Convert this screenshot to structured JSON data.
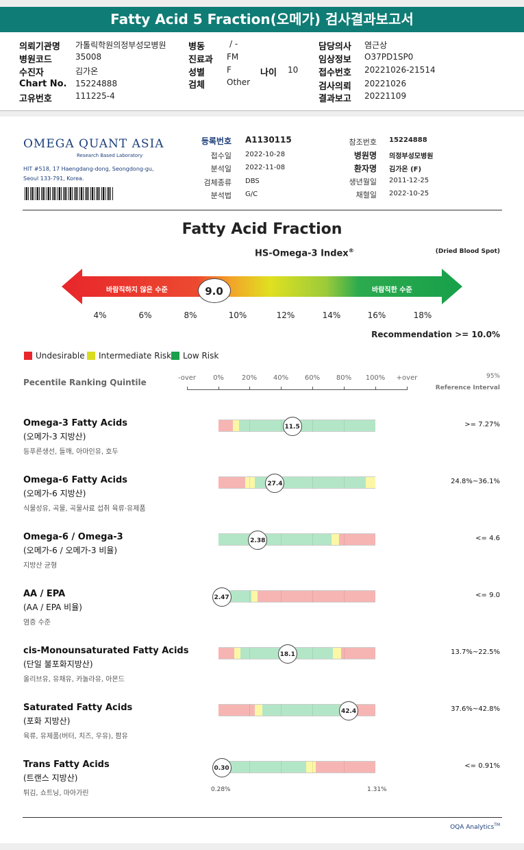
{
  "header": {
    "title": "Fatty Acid 5 Fraction(오메가) 검사결과보고서"
  },
  "info": {
    "inst_label": "의뢰기관명",
    "inst_value": "가톨릭학원의정부성모병원",
    "ward_label": "병동",
    "ward_value": "/ -",
    "doctor_label": "담당의사",
    "doctor_value": "염근상",
    "code_label": "병원코드",
    "code_value": "35008",
    "dept_label": "진료과",
    "dept_value": "FM",
    "clinical_label": "임상정보",
    "clinical_value": "O37PD1SP0",
    "recv_label": "수진자",
    "recv_value": "김가온",
    "sex_label": "성별",
    "sex_value": "F",
    "age_label": "나이",
    "age_value": "10",
    "receipt_label": "접수번호",
    "receipt_value": "20221026-21514",
    "chart_label": "Chart No.",
    "chart_value": "15224888",
    "specimen_label": "검체",
    "specimen_value": "Other",
    "request_label": "검사의뢰",
    "request_value": "20221026",
    "uid_label": "고유번호",
    "uid_value": "111225-4",
    "result_label": "결과보고",
    "result_value": "20221109"
  },
  "lab": {
    "logo": "OMEGA QUANT ASIA",
    "tagline": "Research Based Laboratory",
    "address1": "HIT #518, 17 Haengdang-dong, Seongdong-gu,",
    "address2": "Seoul 133-791, Korea.",
    "reg_label": "등록번호",
    "reg_value": "A1130115",
    "rdate_label": "접수일",
    "rdate_value": "2022-10-28",
    "adate_label": "분석일",
    "adate_value": "2022-11-08",
    "stype_label": "검체종류",
    "stype_value": "DBS",
    "method_label": "분석법",
    "method_value": "G/C",
    "ref_label": "참조번호",
    "ref_value": "15224888",
    "hosp_label": "병원명",
    "hosp_value": "의정부성모병원",
    "pname_label": "환자명",
    "pname_value": "김가온 (F)",
    "birth_label": "생년월일",
    "birth_value": "2011-12-25",
    "draw_label": "채혈일",
    "draw_value": "2022-10-25"
  },
  "index": {
    "section_title": "Fatty Acid Fraction",
    "index_title": "HS-Omega-3 Index",
    "reg_mark": "®",
    "dried": "(Dried Blood Spot)",
    "bad_label": "바람직하지 않은 수준",
    "good_label": "바람직한 수준",
    "value": 9.0,
    "value_text": "9.0",
    "ticks": [
      "4%",
      "6%",
      "8%",
      "10%",
      "12%",
      "14%",
      "16%",
      "18%"
    ],
    "recommendation": "Recommendation  >= 10.0%"
  },
  "legend": {
    "undesirable": "Undesirable",
    "intermediate": "Intermediate Risk",
    "low": "Low Risk",
    "colors": {
      "undesirable": "#e8262b",
      "intermediate": "#d9dc1f",
      "low": "#1aa04a"
    }
  },
  "percentile": {
    "label": "Pecentile Ranking Quintile",
    "ticks": [
      "-over",
      "0%",
      "20%",
      "40%",
      "60%",
      "80%",
      "100%",
      "+over"
    ],
    "ref_top": "95%",
    "ref_bottom": "Reference Interval"
  },
  "chart_data": {
    "type": "table",
    "rows": [
      {
        "name": "Omega-3 Fatty Acids",
        "ko": "(오메가-3 지방산)",
        "food": "등푸른생선, 들깨, 아마인유, 호두",
        "value": "11.5",
        "pos": 47,
        "ref": ">= 7.27%",
        "segs": [
          [
            "r",
            0,
            9
          ],
          [
            "y",
            9,
            13
          ],
          [
            "g",
            13,
            100
          ]
        ]
      },
      {
        "name": "Omega-6 Fatty Acids",
        "ko": "(오메가-6 지방산)",
        "food": "식물성유, 곡물, 곡물사료 섭취 육류·유제품",
        "value": "27.4",
        "pos": 36,
        "ref": "24.8%~36.1%",
        "segs": [
          [
            "r",
            0,
            17
          ],
          [
            "y",
            17,
            23
          ],
          [
            "g",
            23,
            94
          ],
          [
            "y",
            94,
            100
          ]
        ]
      },
      {
        "name": "Omega-6 / Omega-3",
        "ko": "(오메가-6 / 오메가-3 비율)",
        "food": "지방산 균형",
        "value": "2.38",
        "pos": 25,
        "ref": "<= 4.6",
        "segs": [
          [
            "g",
            0,
            72
          ],
          [
            "y",
            72,
            77
          ],
          [
            "r",
            77,
            100
          ]
        ]
      },
      {
        "name": "AA / EPA",
        "ko": "(AA / EPA 비율)",
        "food": "염증 수준",
        "value": "2.47",
        "pos": 2,
        "ref": "<= 9.0",
        "segs": [
          [
            "g",
            0,
            21
          ],
          [
            "y",
            21,
            25
          ],
          [
            "r",
            25,
            100
          ]
        ]
      },
      {
        "name": "cis-Monounsaturated Fatty Acids",
        "ko": "(단일 불포화지방산)",
        "food": "올리브유, 유채유, 카놀라유, 아몬드",
        "value": "18.1",
        "pos": 44,
        "ref": "13.7%~22.5%",
        "segs": [
          [
            "r",
            0,
            10
          ],
          [
            "y",
            10,
            14
          ],
          [
            "g",
            14,
            73
          ],
          [
            "y",
            73,
            78
          ],
          [
            "r",
            78,
            100
          ]
        ]
      },
      {
        "name": "Saturated Fatty Acids",
        "ko": "(포화 지방산)",
        "food": "육류, 유제품(버터, 치즈, 우유), 팜유",
        "value": "42.4",
        "pos": 83,
        "ref": "37.6%~42.8%",
        "segs": [
          [
            "r",
            0,
            23
          ],
          [
            "y",
            23,
            28
          ],
          [
            "g",
            28,
            84
          ],
          [
            "y",
            84,
            88
          ],
          [
            "r",
            88,
            100
          ]
        ]
      },
      {
        "name": "Trans Fatty Acids",
        "ko": "(트랜스 지방산)",
        "food": "튀김, 쇼트닝, 마아가린",
        "value": "0.30",
        "pos": 2,
        "ref": "<= 0.91%",
        "segs": [
          [
            "g",
            0,
            56
          ],
          [
            "y",
            56,
            62
          ],
          [
            "r",
            62,
            100
          ]
        ]
      }
    ],
    "trans_min": "0.28%",
    "trans_max": "1.31%"
  },
  "footer": {
    "brand": "OQA Analytics",
    "tm": "TM"
  }
}
